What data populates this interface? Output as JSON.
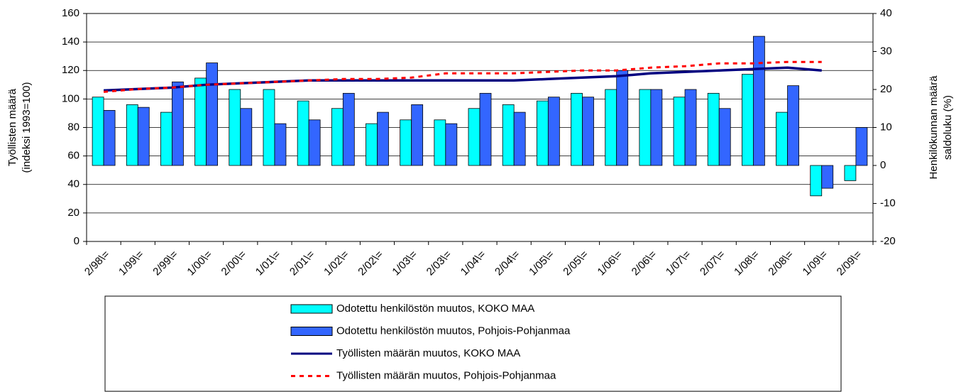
{
  "chart_data": {
    "type": "bar_line",
    "y_label": [
      "Työllisten määrä",
      "(indeksi 1993=100)"
    ],
    "y2_label": [
      "Henkilökunnan määrä",
      "saldoluku (%)"
    ],
    "categories": [
      "2/98\\=",
      "1/99\\=",
      "2/99\\=",
      "1/00\\=",
      "2/00\\=",
      "1/01\\=",
      "2/01\\=",
      "1/02\\=",
      "2/02\\=",
      "1/03\\=",
      "2/03\\=",
      "1/04\\=",
      "2/04\\=",
      "1/05\\=",
      "2/05\\=",
      "1/06\\=",
      "2/06\\=",
      "1/07\\=",
      "2/07\\=",
      "1/08\\=",
      "2/08\\=",
      "1/09\\=",
      "2/09\\="
    ],
    "series": [
      {
        "name": "Odotettu henkilöstön muutos, KOKO MAA",
        "type": "bar",
        "axis": "y2",
        "color": "#00ffff",
        "values": [
          18,
          16,
          14,
          23,
          20,
          20,
          17,
          15,
          11,
          12,
          12,
          15,
          16,
          17,
          19,
          20,
          20,
          18,
          19,
          24,
          14,
          -8,
          -4
        ]
      },
      {
        "name": "Odotettu henkilöstön muutos, Pohjois-Pohjanmaa",
        "type": "bar",
        "axis": "y2",
        "color": "#3366ff",
        "values": [
          14.5,
          15.3,
          22,
          27,
          15,
          11,
          12,
          19,
          14,
          16,
          11,
          19,
          14,
          18,
          18,
          25,
          20,
          20,
          15,
          34,
          21,
          -6,
          10
        ]
      },
      {
        "name": "Työllisten määrän muutos, KOKO MAA",
        "type": "line",
        "color": "#000080",
        "values": [
          106,
          107,
          108,
          110,
          111,
          112,
          113,
          113,
          113,
          113,
          113,
          113,
          113,
          114,
          115,
          116,
          118,
          119,
          120,
          121,
          122,
          120,
          null
        ]
      },
      {
        "name": "Työllisten määrän muutos, Pohjois-Pohjanmaa",
        "type": "line",
        "dashed": true,
        "color": "#ff0000",
        "values": [
          105,
          107,
          108,
          110,
          111,
          112,
          113,
          114,
          114,
          115,
          118,
          118,
          118,
          119,
          120,
          120,
          122,
          123,
          125,
          125,
          126,
          126,
          null
        ]
      }
    ],
    "ylim": [
      0,
      160
    ],
    "yticks": [
      0,
      20,
      40,
      60,
      80,
      100,
      120,
      140,
      160
    ],
    "y2lim": [
      -20,
      40
    ],
    "y2ticks": [
      -20,
      -10,
      0,
      10,
      20,
      30,
      40
    ],
    "grid": true,
    "legend": "bottom"
  }
}
